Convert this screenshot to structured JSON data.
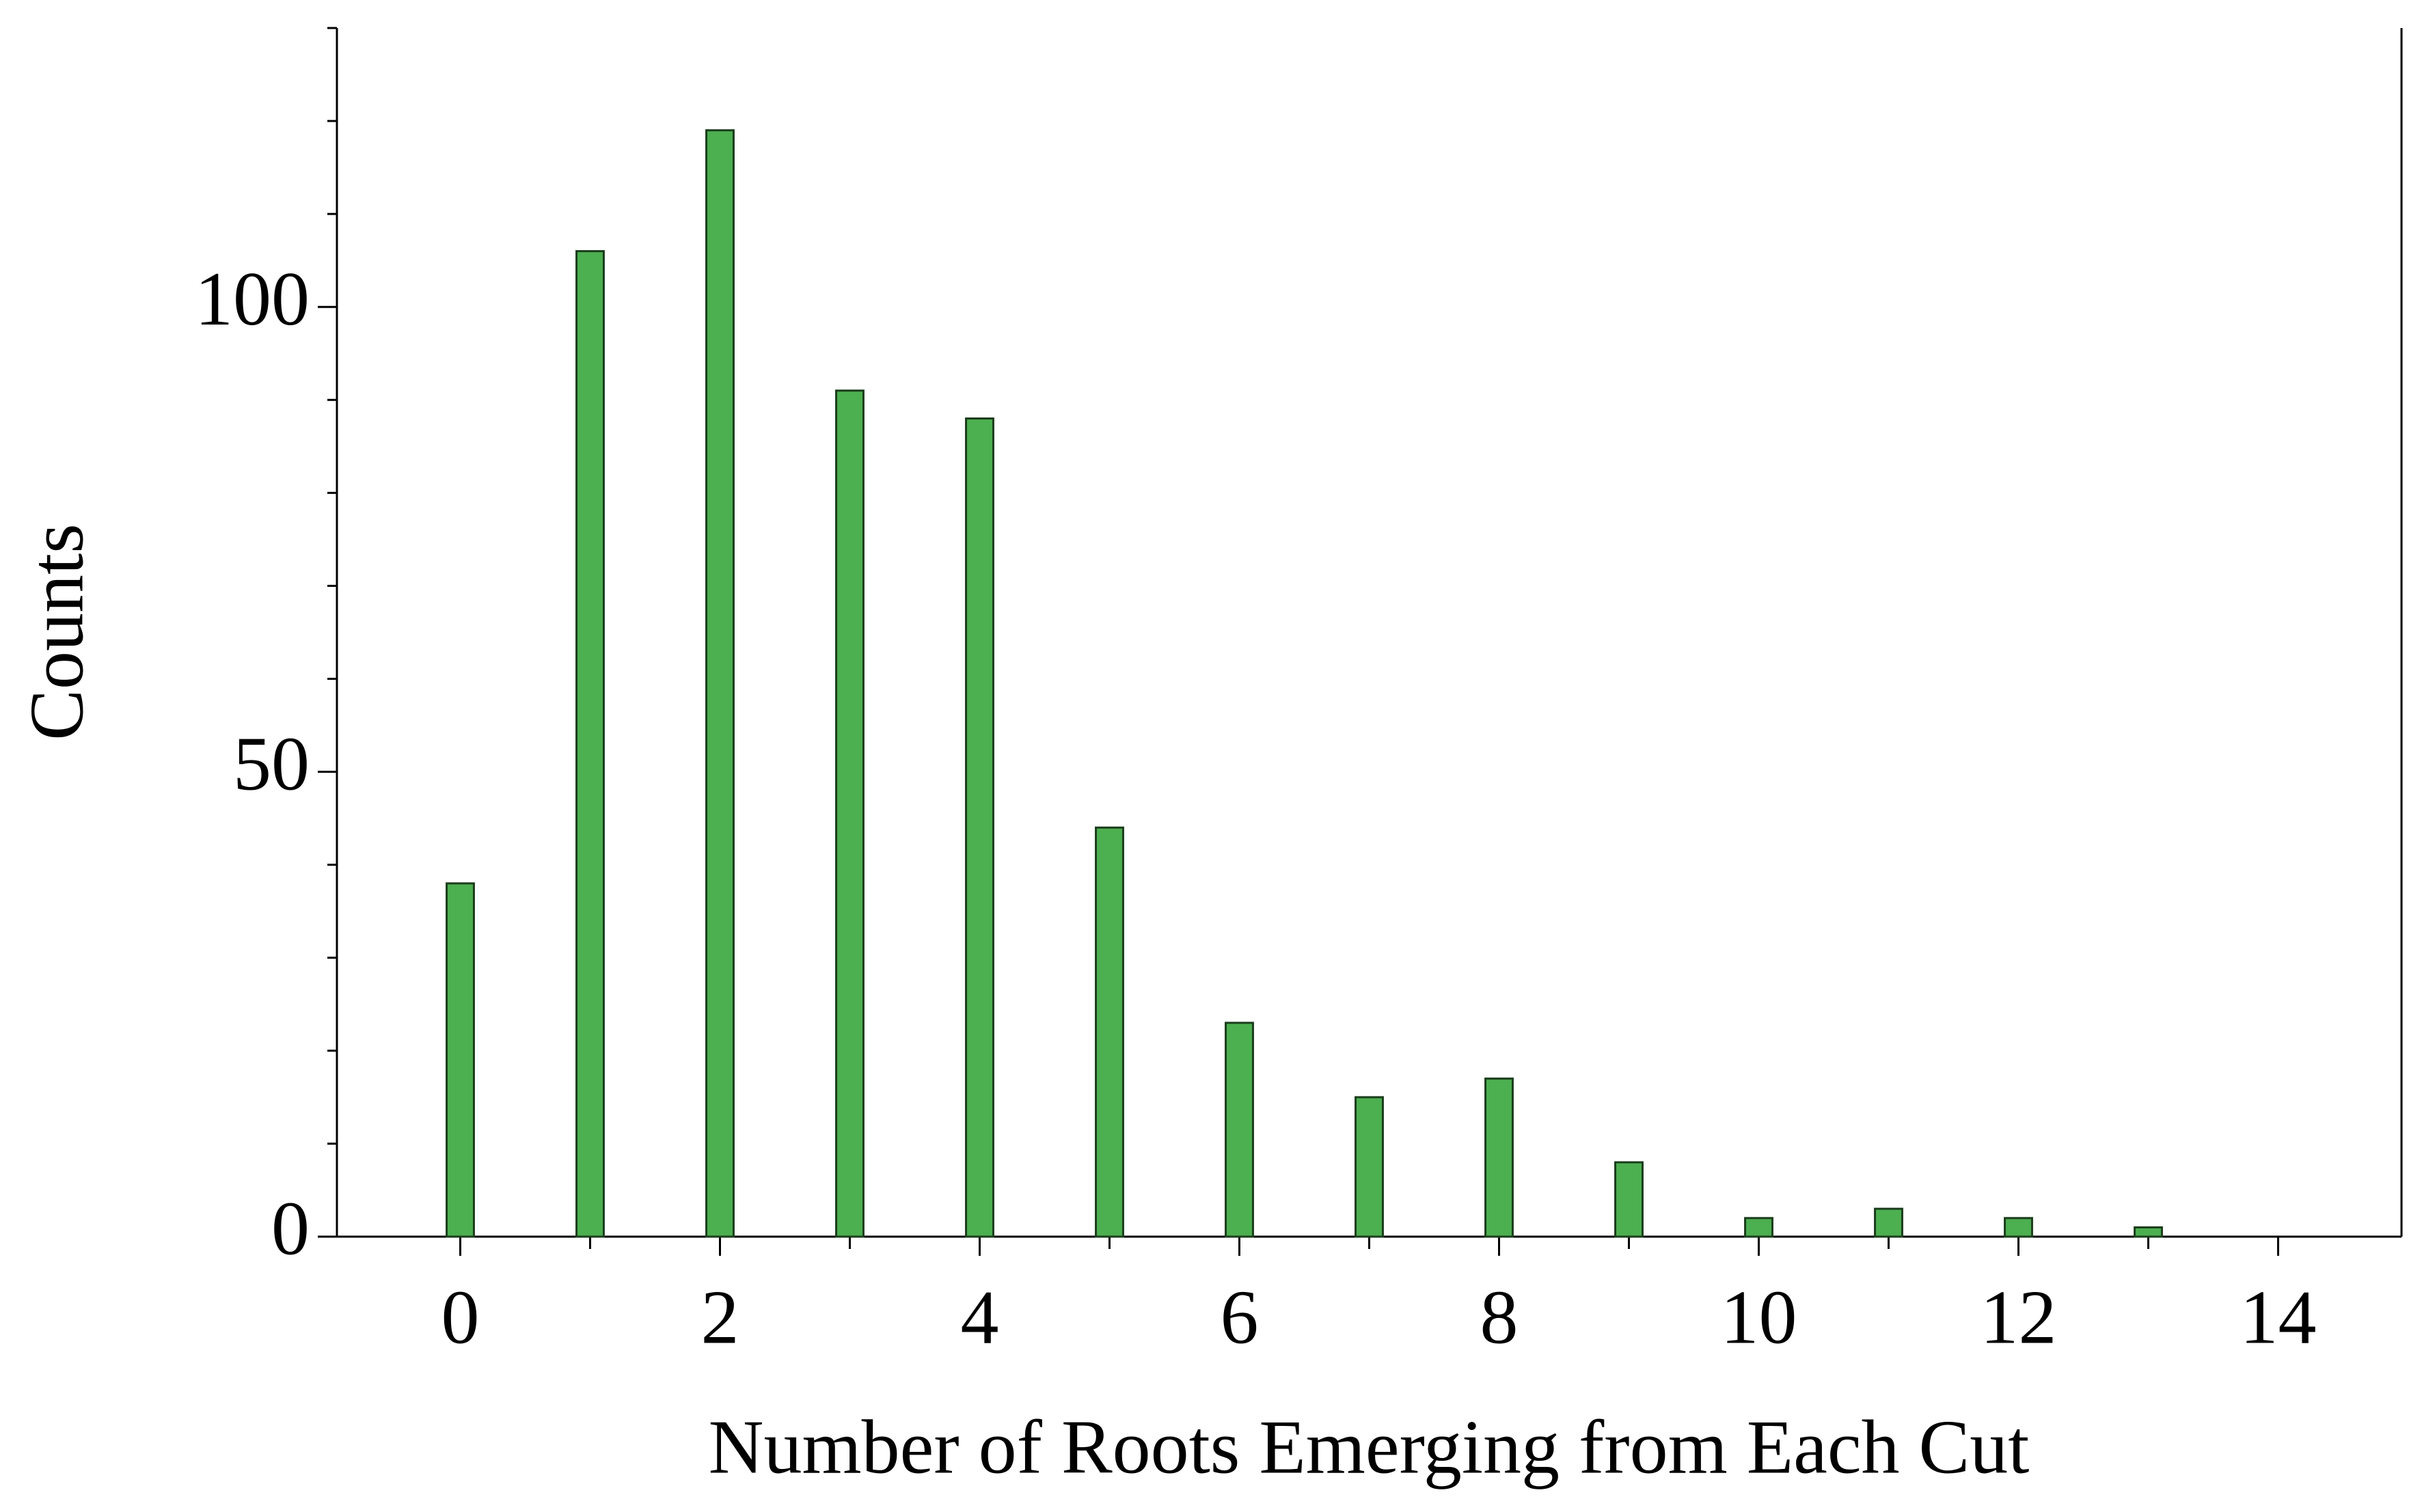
{
  "chart_data": {
    "type": "bar",
    "x_label": "Number of Roots Emerging from Each Cut",
    "y_label": "Counts",
    "x": [
      0,
      1,
      2,
      3,
      4,
      5,
      6,
      7,
      8,
      9,
      10,
      11,
      12,
      13
    ],
    "values": [
      38,
      106,
      119,
      91,
      88,
      44,
      23,
      15,
      17,
      8,
      2,
      3,
      2,
      1
    ],
    "color": "#4caf50",
    "xlim": [
      -0.95,
      14.95
    ],
    "ylim": [
      0,
      130
    ],
    "xticks": [
      0,
      2,
      4,
      6,
      8,
      10,
      12,
      14
    ],
    "xticks_minor": [
      1,
      3,
      5,
      7,
      9,
      11,
      13
    ],
    "yticks": [
      0,
      50,
      100
    ],
    "yticks_minor": [
      10,
      20,
      30,
      40,
      60,
      70,
      80,
      90,
      110,
      120,
      130
    ]
  }
}
